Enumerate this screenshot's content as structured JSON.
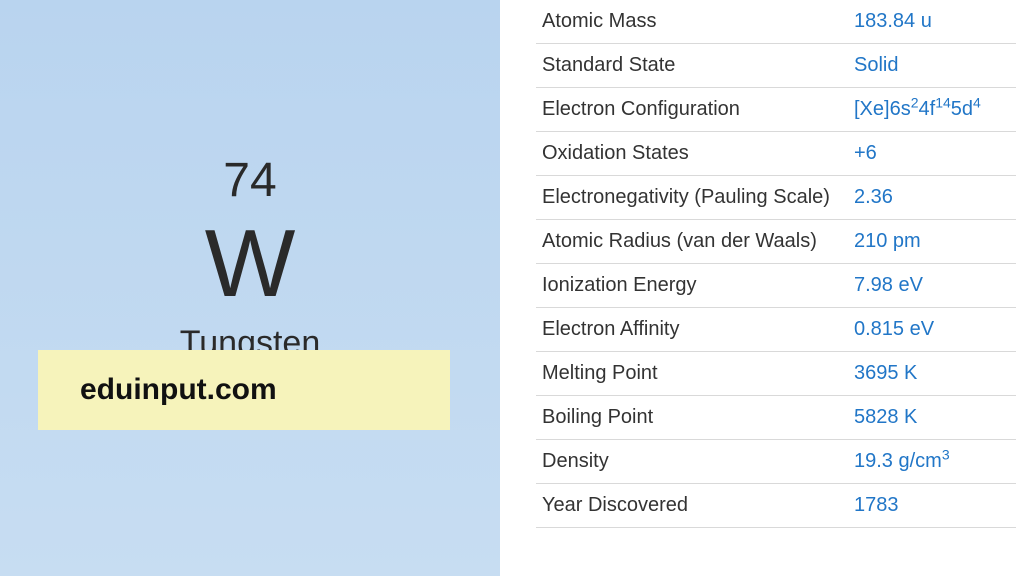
{
  "element": {
    "atomic_number": "74",
    "symbol": "W",
    "name": "Tungsten"
  },
  "watermark": "eduinput.com",
  "properties": [
    {
      "label": "Atomic Mass",
      "value": "183.84 u"
    },
    {
      "label": "Standard State",
      "value": "Solid"
    },
    {
      "label": "Electron Configuration",
      "value_html": "[Xe]6s<sup>2</sup>4f<sup>14</sup>5d<sup>4</sup>"
    },
    {
      "label": "Oxidation States",
      "value": "+6"
    },
    {
      "label": "Electronegativity (Pauling Scale)",
      "value": "2.36"
    },
    {
      "label": "Atomic Radius (van der Waals)",
      "value": "210 pm"
    },
    {
      "label": "Ionization Energy",
      "value": "7.98 eV"
    },
    {
      "label": "Electron Affinity",
      "value": "0.815 eV"
    },
    {
      "label": "Melting Point",
      "value": "3695 K"
    },
    {
      "label": "Boiling Point",
      "value": "5828 K"
    },
    {
      "label": "Density",
      "value_html": "19.3 g/cm<sup>3</sup>"
    },
    {
      "label": "Year Discovered",
      "value": "1783"
    }
  ],
  "colors": {
    "left_bg_top": "#b9d4ef",
    "left_bg_bottom": "#c7ddf2",
    "watermark_bg": "#f6f3bb",
    "text_dark": "#2a2a2a",
    "value_blue": "#2176c7",
    "border": "#d9d9d9"
  },
  "typography": {
    "atomic_number_fontsize": 48,
    "symbol_fontsize": 96,
    "name_fontsize": 34,
    "table_fontsize": 20,
    "watermark_fontsize": 30
  }
}
